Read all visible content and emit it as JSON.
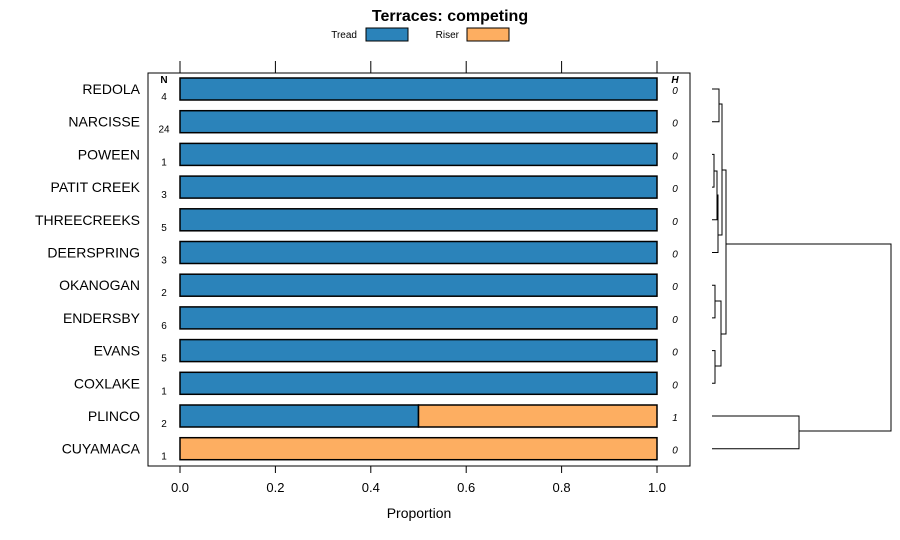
{
  "chart_data": {
    "type": "bar",
    "orientation": "horizontal",
    "stacked": true,
    "title": "Terraces: competing",
    "xlabel": "Proportion",
    "ylabel": "",
    "xlim": [
      0,
      1
    ],
    "x_ticks": [
      "0.0",
      "0.2",
      "0.4",
      "0.6",
      "0.8",
      "1.0"
    ],
    "legend_position": "top",
    "categories": [
      "REDOLA",
      "NARCISSE",
      "POWEEN",
      "PATIT CREEK",
      "THREECREEKS",
      "DEERSPRING",
      "OKANOGAN",
      "ENDERSBY",
      "EVANS",
      "COXLAKE",
      "PLINCO",
      "CUYAMACA"
    ],
    "series": [
      {
        "name": "Tread",
        "color": "#2b83ba",
        "values": [
          1,
          1,
          1,
          1,
          1,
          1,
          1,
          1,
          1,
          1,
          0.5,
          0
        ]
      },
      {
        "name": "Riser",
        "color": "#fdae61",
        "values": [
          0,
          0,
          0,
          0,
          0,
          0,
          0,
          0,
          0,
          0,
          0.5,
          1
        ]
      }
    ],
    "n_header": "N",
    "n_values": [
      "4",
      "24",
      "1",
      "3",
      "5",
      "3",
      "2",
      "6",
      "5",
      "1",
      "2",
      "1"
    ],
    "h_header": "H",
    "h_values": [
      "0",
      "0",
      "0",
      "0",
      "0",
      "0",
      "0",
      "0",
      "0",
      "0",
      "1",
      "0"
    ],
    "dendrogram": true
  }
}
